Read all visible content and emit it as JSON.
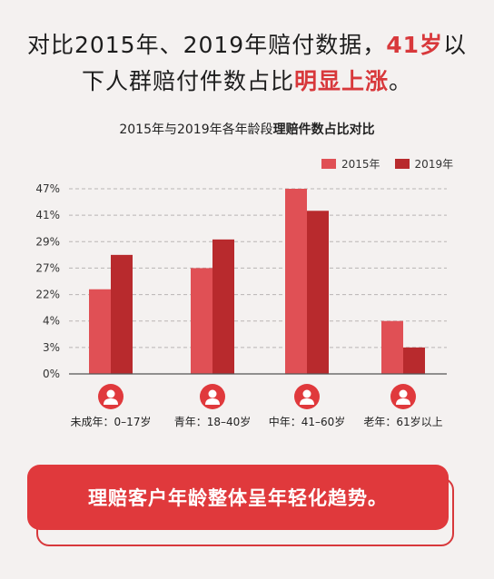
{
  "headline": {
    "line1_a": "对比2015年、2019年赔付数据，",
    "line1_b": "41岁",
    "line1_c": "以",
    "line2_a": "下人群赔付件数占比",
    "line2_b": "明显上涨",
    "line2_c": "。"
  },
  "chart_title": {
    "normal": "2015年与2019年各年龄段",
    "bold": "理赔件数占比对比"
  },
  "colors": {
    "series_2015": "#e05055",
    "series_2019": "#b82a2d",
    "accent": "#d8383b",
    "icon": "#e0393c"
  },
  "chart_data": {
    "type": "bar",
    "y_tick_labels": [
      "0%",
      "3%",
      "4%",
      "22%",
      "27%",
      "29%",
      "41%",
      "47%"
    ],
    "grid": true,
    "legend_position": "top-right",
    "categories": [
      "未成年：0–17岁",
      "青年：18–40岁",
      "中年：41–60岁",
      "老年：61岁以上"
    ],
    "category_icons": [
      "person-icon",
      "person-icon",
      "person-icon",
      "person-icon"
    ],
    "series": [
      {
        "name": "2015年",
        "values": [
          23,
          27,
          47,
          4
        ]
      },
      {
        "name": "2019年",
        "values": [
          28,
          30,
          42,
          3
        ]
      }
    ]
  },
  "banner": {
    "text": "理赔客户年龄整体呈年轻化趋势。"
  }
}
